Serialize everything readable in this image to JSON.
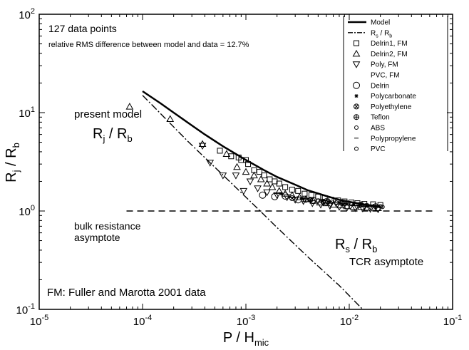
{
  "chart_data": {
    "type": "scatter",
    "x_scale": "log",
    "y_scale": "log",
    "xlim": [
      1e-05,
      0.1
    ],
    "ylim": [
      0.1,
      100
    ],
    "xlabel": {
      "main": "P / H",
      "sub": "mic"
    },
    "ylabel": {
      "main": "R",
      "sub1": "j",
      "mid": " / R",
      "sub2": "b"
    },
    "x_ticks": [
      {
        "value": 1e-05,
        "base": "10",
        "exp": "-5"
      },
      {
        "value": 0.0001,
        "base": "10",
        "exp": "-4"
      },
      {
        "value": 0.001,
        "base": "10",
        "exp": "-3"
      },
      {
        "value": 0.01,
        "base": "10",
        "exp": "-2"
      },
      {
        "value": 0.1,
        "base": "10",
        "exp": "-1"
      }
    ],
    "y_ticks": [
      {
        "value": 0.1,
        "base": "10",
        "exp": "-1"
      },
      {
        "value": 1,
        "base": "10",
        "exp": "0"
      },
      {
        "value": 10,
        "base": "10",
        "exp": "1"
      },
      {
        "value": 100,
        "base": "10",
        "exp": "2"
      }
    ],
    "annotations": {
      "count": "127 data points",
      "rms": "relative RMS difference between model and data = 12.7%",
      "present_model": "present model",
      "rjrb_main": "R",
      "rjrb_sub1": "j",
      "rjrb_mid": " / R",
      "rjrb_sub2": "b",
      "bulk_line1": "bulk resistance",
      "bulk_line2": "asymptote",
      "rsrb_main": "R",
      "rsrb_sub1": "s",
      "rsrb_mid": " / R",
      "rsrb_sub2": "b",
      "tcr": "TCR asymptote",
      "fm_note": "FM: Fuller and Marotta 2001 data"
    },
    "legend": {
      "placement": "top-right",
      "entries": [
        {
          "label": "Model",
          "marker": "solid-line"
        },
        {
          "label": "R",
          "sub1": "s",
          "mid": " / R",
          "sub2": "b",
          "marker": "dashdot-line"
        },
        {
          "label": "Delrin1, FM",
          "marker": "square"
        },
        {
          "label": "Delrin2, FM",
          "marker": "triangle-up"
        },
        {
          "label": "Poly, FM",
          "marker": "triangle-down"
        },
        {
          "label": "PVC, FM",
          "marker": "none"
        },
        {
          "label": "Delrin",
          "marker": "circle"
        },
        {
          "label": "Polycarbonate",
          "marker": "star"
        },
        {
          "label": "Polyethylene",
          "marker": "circle-x"
        },
        {
          "label": "Teflon",
          "marker": "circle-plus"
        },
        {
          "label": "ABS",
          "marker": "small-circle"
        },
        {
          "label": "Polypropylene",
          "marker": "dash"
        },
        {
          "label": "PVC",
          "marker": "small-circle"
        }
      ]
    },
    "series": [
      {
        "name": "Model",
        "style": "solid",
        "points": [
          [
            0.0001,
            16.5
          ],
          [
            0.00015,
            12.4
          ],
          [
            0.0002,
            10.0
          ],
          [
            0.0003,
            7.4
          ],
          [
            0.0004,
            6.0
          ],
          [
            0.0006,
            4.55
          ],
          [
            0.0008,
            3.8
          ],
          [
            0.001,
            3.3
          ],
          [
            0.0015,
            2.6
          ],
          [
            0.002,
            2.22
          ],
          [
            0.003,
            1.85
          ],
          [
            0.004,
            1.62
          ],
          [
            0.006,
            1.42
          ],
          [
            0.008,
            1.3
          ],
          [
            0.01,
            1.24
          ],
          [
            0.012,
            1.2
          ],
          [
            0.015,
            1.15
          ],
          [
            0.02,
            1.12
          ]
        ]
      },
      {
        "name": "Rs / Rb",
        "style": "dashdot",
        "points": [
          [
            0.0001,
            15.0
          ],
          [
            0.000165,
            8.8
          ],
          [
            0.000275,
            5.1
          ],
          [
            0.00045,
            3.1
          ],
          [
            0.00075,
            1.85
          ],
          [
            0.00125,
            1.1
          ],
          [
            0.002,
            0.68
          ],
          [
            0.004,
            0.34
          ],
          [
            0.008,
            0.175
          ],
          [
            0.0135,
            0.1
          ]
        ]
      },
      {
        "name": "bulk resistance asymptote",
        "style": "dashed",
        "points": [
          [
            7e-05,
            1.0
          ],
          [
            0.07,
            1.0
          ]
        ]
      },
      {
        "name": "Delrin1, FM",
        "marker": "square",
        "points": [
          [
            0.00056,
            4.1
          ],
          [
            0.00072,
            3.6
          ],
          [
            0.00085,
            3.5
          ],
          [
            0.0009,
            3.3
          ],
          [
            0.001,
            3.3
          ],
          [
            0.00105,
            3.0
          ],
          [
            0.0012,
            2.6
          ],
          [
            0.00135,
            2.5
          ],
          [
            0.0015,
            2.3
          ],
          [
            0.0017,
            2.1
          ],
          [
            0.0019,
            2.0
          ],
          [
            0.0021,
            1.9
          ],
          [
            0.0024,
            1.75
          ],
          [
            0.0028,
            1.65
          ],
          [
            0.0032,
            1.6
          ],
          [
            0.0037,
            1.5
          ],
          [
            0.0043,
            1.45
          ],
          [
            0.005,
            1.4
          ],
          [
            0.0058,
            1.35
          ],
          [
            0.0067,
            1.3
          ],
          [
            0.0078,
            1.28
          ],
          [
            0.009,
            1.25
          ],
          [
            0.0105,
            1.22
          ],
          [
            0.012,
            1.2
          ],
          [
            0.014,
            1.18
          ],
          [
            0.017,
            1.17
          ],
          [
            0.02,
            1.15
          ]
        ]
      },
      {
        "name": "Delrin2, FM",
        "marker": "triangle-up",
        "points": [
          [
            7.5e-05,
            11.5
          ],
          [
            0.000185,
            8.6
          ],
          [
            0.00038,
            4.8
          ],
          [
            0.00065,
            3.8
          ],
          [
            0.00082,
            2.8
          ],
          [
            0.001,
            2.5
          ],
          [
            0.0012,
            2.3
          ],
          [
            0.0014,
            2.1
          ],
          [
            0.0016,
            1.9
          ],
          [
            0.0018,
            1.75
          ],
          [
            0.0021,
            1.6
          ],
          [
            0.0024,
            1.5
          ],
          [
            0.0028,
            1.45
          ],
          [
            0.0033,
            1.38
          ],
          [
            0.0038,
            1.32
          ],
          [
            0.0045,
            1.27
          ],
          [
            0.0052,
            1.22
          ],
          [
            0.006,
            1.2
          ],
          [
            0.007,
            1.16
          ],
          [
            0.0082,
            1.14
          ],
          [
            0.0095,
            1.12
          ],
          [
            0.011,
            1.1
          ],
          [
            0.013,
            1.1
          ],
          [
            0.015,
            1.08
          ],
          [
            0.017,
            1.08
          ],
          [
            0.019,
            1.07
          ]
        ]
      },
      {
        "name": "Poly, FM",
        "marker": "triangle-down",
        "points": [
          [
            0.00038,
            4.6
          ],
          [
            0.00045,
            3.1
          ],
          [
            0.0006,
            2.3
          ],
          [
            0.0008,
            2.3
          ],
          [
            0.00095,
            1.6
          ],
          [
            0.0011,
            2.0
          ],
          [
            0.0013,
            1.7
          ],
          [
            0.0016,
            1.55
          ],
          [
            0.002,
            1.45
          ],
          [
            0.0025,
            1.38
          ],
          [
            0.003,
            1.3
          ],
          [
            0.0036,
            1.26
          ],
          [
            0.0044,
            1.2
          ],
          [
            0.0053,
            1.16
          ],
          [
            0.0065,
            1.13
          ],
          [
            0.008,
            1.1
          ],
          [
            0.0095,
            1.08
          ],
          [
            0.0115,
            1.07
          ],
          [
            0.0135,
            1.06
          ],
          [
            0.016,
            1.05
          ],
          [
            0.019,
            1.04
          ]
        ]
      },
      {
        "name": "Delrin",
        "marker": "circle",
        "points": [
          [
            0.00145,
            1.45
          ],
          [
            0.0019,
            1.4
          ],
          [
            0.0024,
            1.42
          ],
          [
            0.0032,
            1.3
          ],
          [
            0.0045,
            1.28
          ],
          [
            0.006,
            1.24
          ]
        ]
      },
      {
        "name": "Polycarbonate",
        "marker": "star",
        "points": [
          [
            0.0022,
            1.5
          ],
          [
            0.0035,
            1.35
          ],
          [
            0.0055,
            1.28
          ],
          [
            0.008,
            1.22
          ],
          [
            0.011,
            1.18
          ]
        ]
      },
      {
        "name": "Polyethylene",
        "marker": "circle-x",
        "points": [
          [
            0.0028,
            1.35
          ],
          [
            0.0042,
            1.3
          ],
          [
            0.0062,
            1.25
          ],
          [
            0.009,
            1.2
          ],
          [
            0.013,
            1.16
          ]
        ]
      },
      {
        "name": "Teflon",
        "marker": "circle-plus",
        "points": [
          [
            0.0038,
            1.3
          ],
          [
            0.0056,
            1.24
          ],
          [
            0.0085,
            1.2
          ],
          [
            0.0125,
            1.15
          ],
          [
            0.018,
            1.12
          ]
        ]
      },
      {
        "name": "ABS",
        "marker": "small-circle",
        "points": [
          [
            0.005,
            1.28
          ],
          [
            0.0075,
            1.22
          ],
          [
            0.0105,
            1.18
          ],
          [
            0.015,
            1.14
          ],
          [
            0.021,
            1.1
          ]
        ]
      },
      {
        "name": "Polypropylene",
        "marker": "dash",
        "points": [
          [
            0.0065,
            1.25
          ],
          [
            0.0095,
            1.2
          ],
          [
            0.0135,
            1.15
          ],
          [
            0.019,
            1.12
          ]
        ]
      },
      {
        "name": "PVC",
        "marker": "small-circle",
        "points": [
          [
            0.0042,
            1.3
          ],
          [
            0.0068,
            1.24
          ],
          [
            0.0098,
            1.2
          ],
          [
            0.0145,
            1.14
          ],
          [
            0.02,
            1.12
          ]
        ]
      }
    ]
  }
}
